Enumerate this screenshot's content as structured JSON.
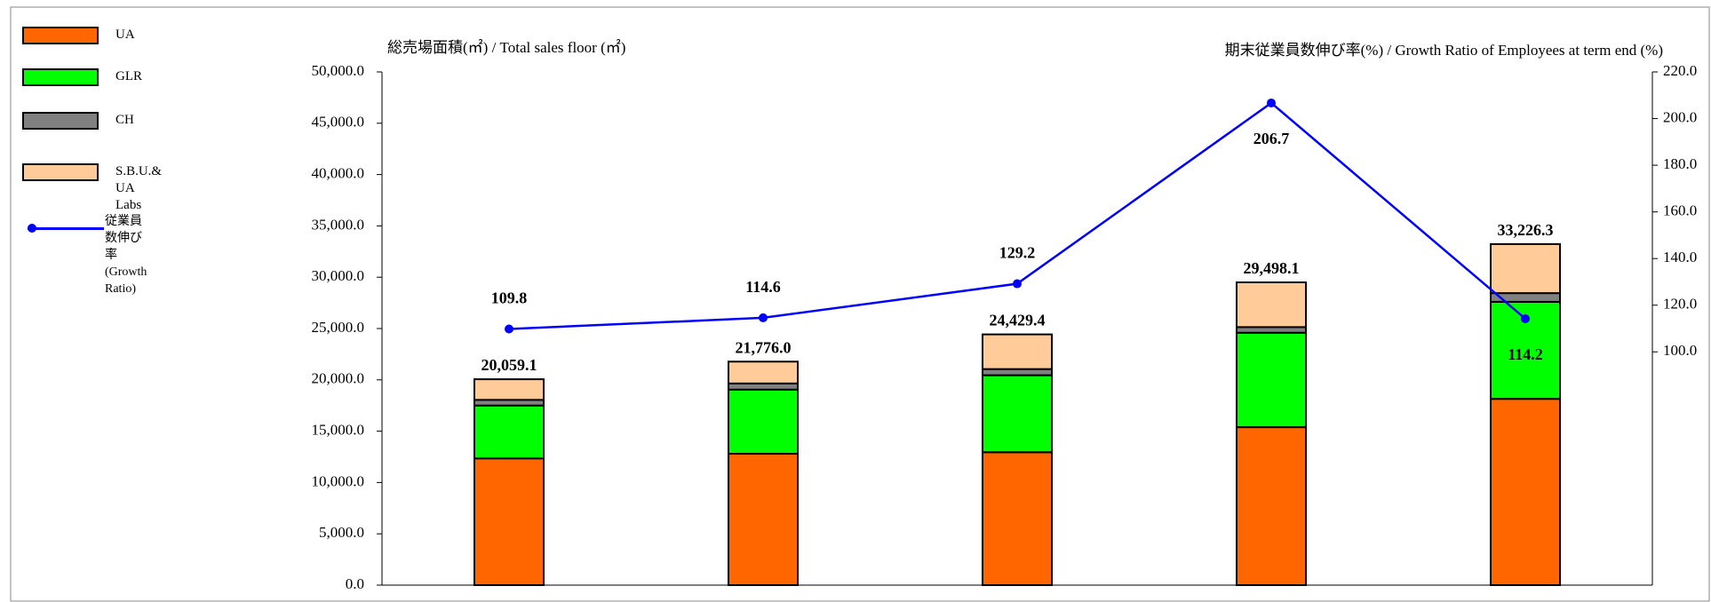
{
  "chart_data": {
    "type": "bar",
    "y_title": "総売場面積(㎡) / Total sales floor (㎡)",
    "y2_title": "期末従業員数伸び率(%) / Growth Ratio of Employees at term end (%)",
    "categories": [
      null,
      null,
      null,
      null,
      null
    ],
    "series": [
      {
        "name": "UA",
        "color": "#ff6600",
        "values": [
          12350,
          12800,
          12950,
          15390,
          18150
        ]
      },
      {
        "name": "GLR",
        "color": "#00ff00",
        "values": [
          5150,
          6250,
          7500,
          9200,
          9450
        ]
      },
      {
        "name": "CH",
        "color": "#808080",
        "values": [
          550,
          600,
          600,
          550,
          850
        ]
      },
      {
        "name": "S.B.U.& UA Labs",
        "color": "#ffcc99",
        "values": [
          2009.1,
          2126,
          3379.4,
          4358.1,
          4776.3
        ]
      },
      {
        "name": "従業員数伸び率\n(Growth Ratio)",
        "color": "#0000ff",
        "type": "line",
        "axis": "y2",
        "values": [
          109.8,
          114.6,
          129.2,
          206.7,
          114.2
        ]
      }
    ],
    "totals": [
      20059.1,
      21776.0,
      24429.4,
      29498.1,
      33226.3
    ],
    "total_labels": [
      "20,059.1",
      "21,776.0",
      "24,429.4",
      "29,498.1",
      "33,226.3"
    ],
    "ylim": [
      0,
      50000
    ],
    "yticks": [
      {
        "value": 0,
        "label": "0.0"
      },
      {
        "value": 5000,
        "label": "5,000.0"
      },
      {
        "value": 10000,
        "label": "10,000.0"
      },
      {
        "value": 15000,
        "label": "15,000.0"
      },
      {
        "value": 20000,
        "label": "20,000.0"
      },
      {
        "value": 25000,
        "label": "25,000.0"
      },
      {
        "value": 30000,
        "label": "30,000.0"
      },
      {
        "value": 35000,
        "label": "35,000.0"
      },
      {
        "value": 40000,
        "label": "40,000.0"
      },
      {
        "value": 45000,
        "label": "45,000.0"
      },
      {
        "value": 50000,
        "label": "50,000.0"
      }
    ],
    "y2lim": [
      0,
      220
    ],
    "y2ticks": [
      {
        "value": 100,
        "label": "100.0"
      },
      {
        "value": 120,
        "label": "120.0"
      },
      {
        "value": 140,
        "label": "140.0"
      },
      {
        "value": 160,
        "label": "160.0"
      },
      {
        "value": 180,
        "label": "180.0"
      },
      {
        "value": 200,
        "label": "200.0"
      },
      {
        "value": 220,
        "label": "220.0"
      }
    ],
    "legend": "left"
  }
}
